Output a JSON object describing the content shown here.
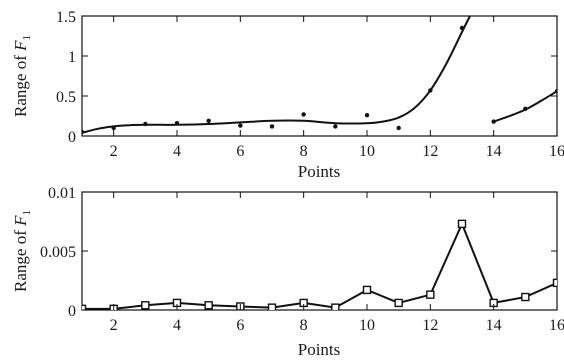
{
  "chart_data": [
    {
      "type": "scatter",
      "xlabel": "Points",
      "ylabel_prefix": "Range of ",
      "ylabel_var": "F",
      "ylabel_sub": "1",
      "xlim": [
        1,
        16
      ],
      "ylim": [
        0,
        1.5
      ],
      "xticks": [
        "2",
        "4",
        "6",
        "8",
        "10",
        "12",
        "14",
        "16"
      ],
      "yticks": [
        "0",
        "0.5",
        "1",
        "1.5"
      ],
      "grid": false,
      "x": [
        1,
        2,
        3,
        4,
        5,
        6,
        7,
        8,
        9,
        10,
        11,
        12,
        13,
        14,
        15,
        16
      ],
      "y": [
        0.05,
        0.1,
        0.15,
        0.16,
        0.19,
        0.13,
        0.12,
        0.27,
        0.12,
        0.26,
        0.1,
        0.57,
        1.35,
        0.18,
        0.34,
        0.56
      ],
      "fit_segments": [
        {
          "x": [
            1,
            1.5,
            2,
            2.5,
            3,
            3.5,
            4,
            5,
            6,
            7,
            8,
            9,
            10,
            10.5,
            11,
            11.5,
            12,
            12.5,
            13,
            13.25
          ],
          "y": [
            0.04,
            0.09,
            0.12,
            0.135,
            0.14,
            0.14,
            0.14,
            0.15,
            0.17,
            0.19,
            0.19,
            0.16,
            0.16,
            0.18,
            0.23,
            0.35,
            0.57,
            0.9,
            1.3,
            1.5
          ]
        },
        {
          "x": [
            14,
            14.5,
            15,
            15.5,
            16
          ],
          "y": [
            0.18,
            0.25,
            0.33,
            0.44,
            0.56
          ]
        }
      ]
    },
    {
      "type": "line",
      "xlabel": "Points",
      "ylabel_prefix": "Range of ",
      "ylabel_var": "F",
      "ylabel_sub": "1",
      "xlim": [
        1,
        16
      ],
      "ylim": [
        0,
        0.01
      ],
      "xticks": [
        "2",
        "4",
        "6",
        "8",
        "10",
        "12",
        "14",
        "16"
      ],
      "yticks": [
        "0",
        "0.005",
        "0.01"
      ],
      "grid": false,
      "marker": "square",
      "x": [
        1,
        2,
        3,
        4,
        5,
        6,
        7,
        8,
        9,
        10,
        11,
        12,
        13,
        14,
        15,
        16
      ],
      "y": [
        0.0001,
        0.0001,
        0.0004,
        0.0006,
        0.0004,
        0.0003,
        0.0002,
        0.0006,
        0.0002,
        0.0017,
        0.0006,
        0.0013,
        0.0073,
        0.0006,
        0.0011,
        0.0023
      ]
    }
  ]
}
